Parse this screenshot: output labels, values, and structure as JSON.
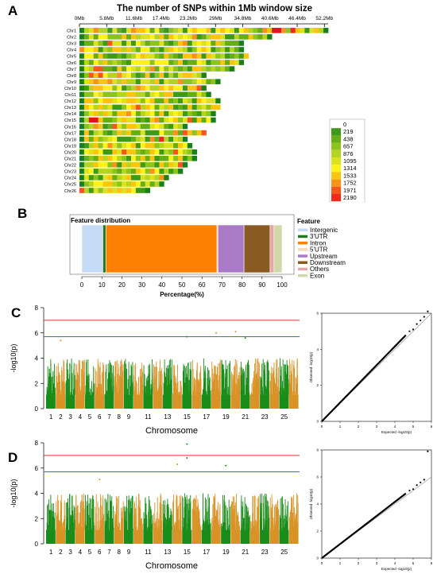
{
  "panels": {
    "a": "A",
    "b": "B",
    "c": "C",
    "d": "D"
  },
  "colors": {
    "palette": [
      "#1a7f1a",
      "#3e9a14",
      "#67ad14",
      "#8dc41c",
      "#b5d420",
      "#dde21e",
      "#fdf21c",
      "#fbc50f",
      "#f8931a",
      "#f4571c",
      "#ee2a1c",
      "#e8101d"
    ],
    "feature_colors": [
      "#c5dbf5",
      "#1f7a1f",
      "#ff8000",
      "#f5d9b8",
      "#a97bc7",
      "#8a5a23",
      "#e6a6a6",
      "#cfd8a8"
    ],
    "manhattan_odd": "#1a8c1a",
    "manhattan_even": "#d99226",
    "threshold_red": "#e03333",
    "threshold_blue": "#4a63d8"
  },
  "chart_data": [
    {
      "type": "heatmap",
      "title": "The number of SNPs within 1Mb window size",
      "x_ticks": [
        "0Mb",
        "5.8Mb",
        "11.6Mb",
        "17.4Mb",
        "23.2Mb",
        "29Mb",
        "34.8Mb",
        "40.6Mb",
        "46.4Mb",
        "52.2Mb"
      ],
      "x_tick_values": [
        0,
        5.8,
        11.6,
        17.4,
        23.2,
        29,
        34.8,
        40.6,
        46.4,
        52.2
      ],
      "chromosomes": [
        "Chr1",
        "Chr2",
        "Chr3",
        "Chr4",
        "Chr5",
        "Chr6",
        "Chr7",
        "Chr8",
        "Chr9",
        "Chr10",
        "Chr11",
        "Chr12",
        "Chr13",
        "Chr14",
        "Chr15",
        "Chr16",
        "Chr17",
        "Chr18",
        "Chr19",
        "Chr20",
        "Chr21",
        "Chr22",
        "Chr23",
        "Chr24",
        "Chr25",
        "Chr26"
      ],
      "lengths_mb": [
        53,
        41,
        35,
        35,
        36,
        35,
        33,
        27,
        30,
        27,
        28,
        30,
        30,
        29,
        29,
        23,
        27,
        23,
        24,
        25,
        25,
        23,
        22,
        19,
        18,
        15
      ],
      "legend_values": [
        "0",
        "219",
        "438",
        "657",
        "876",
        "1095",
        "1314",
        "1533",
        "1752",
        "1971",
        "2190"
      ],
      "range": [
        0,
        2190
      ]
    },
    {
      "type": "bar",
      "stacked": true,
      "title": "Feature distribution",
      "xlabel": "Percentage(%)",
      "xlim": [
        0,
        100
      ],
      "x_ticks": [
        "0",
        "10",
        "20",
        "30",
        "40",
        "50",
        "60",
        "70",
        "80",
        "90",
        "100"
      ],
      "legend_title": "Feature",
      "categories": [
        "Intergenic",
        "3'UTR",
        "Intron",
        "5'UTR",
        "Upstream",
        "Downstream",
        "Others",
        "Exon"
      ],
      "values": [
        10.5,
        1.5,
        55.5,
        0.5,
        13,
        13,
        2,
        4
      ]
    },
    {
      "type": "scatter",
      "subtype": "manhattan",
      "xlabel": "Chromosome",
      "ylabel": "-log10(p)",
      "ylim": [
        0,
        8
      ],
      "y_ticks": [
        "0",
        "2",
        "4",
        "6",
        "8"
      ],
      "x_ticks": [
        "1",
        "2",
        "3",
        "4",
        "5",
        "6",
        "7",
        "8",
        "9",
        "11",
        "13",
        "15",
        "17",
        "19",
        "21",
        "23",
        "25"
      ],
      "thresholds": [
        7,
        5.7
      ],
      "top_hits": [
        {
          "chr": 2,
          "p": 5.4
        },
        {
          "chr": 15,
          "p": 5.7
        },
        {
          "chr": 18,
          "p": 6.0
        },
        {
          "chr": 20,
          "p": 6.1
        },
        {
          "chr": 21,
          "p": 5.6
        }
      ]
    },
    {
      "type": "scatter",
      "subtype": "qq",
      "xlabel": "Expected -log10(p)",
      "ylabel": "Observed -log10(p)",
      "xlim": [
        0,
        6
      ],
      "ylim": [
        0,
        6
      ],
      "ticks": [
        "0",
        "1",
        "2",
        "3",
        "4",
        "5",
        "6"
      ],
      "max_observed": 6.1
    },
    {
      "type": "scatter",
      "subtype": "manhattan",
      "xlabel": "Chromosome",
      "ylabel": "-log10(p)",
      "ylim": [
        0,
        8
      ],
      "y_ticks": [
        "0",
        "2",
        "4",
        "6",
        "8"
      ],
      "x_ticks": [
        "1",
        "2",
        "3",
        "4",
        "5",
        "6",
        "7",
        "8",
        "9",
        "11",
        "13",
        "15",
        "17",
        "19",
        "21",
        "23",
        "25"
      ],
      "thresholds": [
        7,
        5.7
      ],
      "top_hits": [
        {
          "chr": 15,
          "p": 7.9
        },
        {
          "chr": 15,
          "p": 6.8
        },
        {
          "chr": 14,
          "p": 6.3
        },
        {
          "chr": 19,
          "p": 6.2
        },
        {
          "chr": 6,
          "p": 5.1
        }
      ]
    },
    {
      "type": "scatter",
      "subtype": "qq",
      "xlabel": "Expected -log10(p)",
      "ylabel": "Observed -log10(p)",
      "xlim": [
        0,
        6
      ],
      "ylim": [
        0,
        8
      ],
      "ticks": [
        "0",
        "1",
        "2",
        "3",
        "4",
        "5",
        "6"
      ],
      "max_observed": 7.9
    }
  ]
}
